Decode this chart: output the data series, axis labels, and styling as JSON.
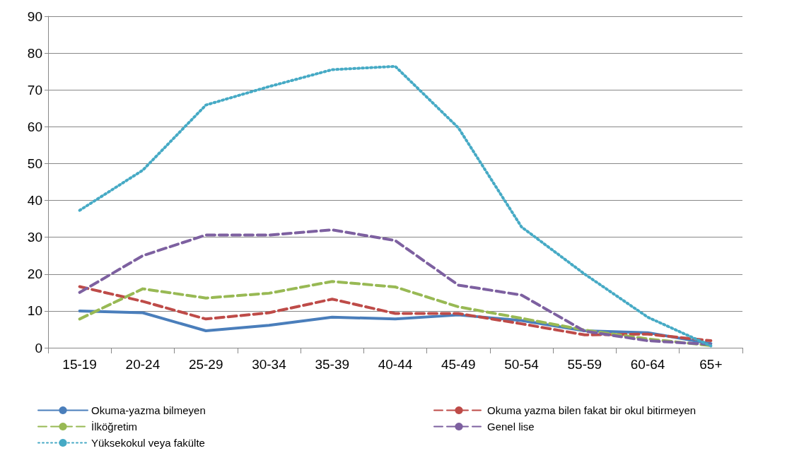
{
  "chart_data": {
    "type": "line",
    "categories": [
      "15-19",
      "20-24",
      "25-29",
      "30-34",
      "35-39",
      "40-44",
      "45-49",
      "50-54",
      "55-59",
      "60-64",
      "65+"
    ],
    "ylim": [
      0,
      90
    ],
    "yticks": [
      0,
      10,
      20,
      30,
      40,
      50,
      60,
      70,
      80,
      90
    ],
    "grid": "y",
    "legend": "bottom",
    "marker": "none",
    "series": [
      {
        "name": "Okuma-yazma bilmeyen",
        "color": "#4a7ebb",
        "line_style": "solid",
        "values": [
          10,
          9.5,
          4.6,
          6.1,
          8.3,
          7.8,
          8.9,
          7.4,
          4.6,
          4.1,
          1.1
        ]
      },
      {
        "name": "Okuma yazma bilen fakat bir okul bitirmeyen",
        "color": "#be4b48",
        "line_style": "dashed",
        "values": [
          16.6,
          12.6,
          7.8,
          9.5,
          13.2,
          9.3,
          9.3,
          6.5,
          3.5,
          3.7,
          1.9
        ]
      },
      {
        "name": "İlköğretim",
        "color": "#98b954",
        "line_style": "dashed",
        "values": [
          7.8,
          16,
          13.5,
          14.8,
          18,
          16.5,
          11.1,
          8,
          4.8,
          2.4,
          0.6
        ]
      },
      {
        "name": "Genel lise",
        "color": "#7d60a0",
        "line_style": "dashed",
        "values": [
          15,
          25,
          30.6,
          30.6,
          32,
          29.1,
          17,
          14.3,
          4.5,
          1.9,
          0.9
        ]
      },
      {
        "name": "Yüksekokul veya fakülte",
        "color": "#46aac5",
        "line_style": "dotted",
        "values": [
          37.3,
          48.2,
          65.9,
          70.9,
          75.5,
          76.4,
          59.7,
          32.8,
          20,
          8.3,
          0.5
        ]
      }
    ]
  }
}
